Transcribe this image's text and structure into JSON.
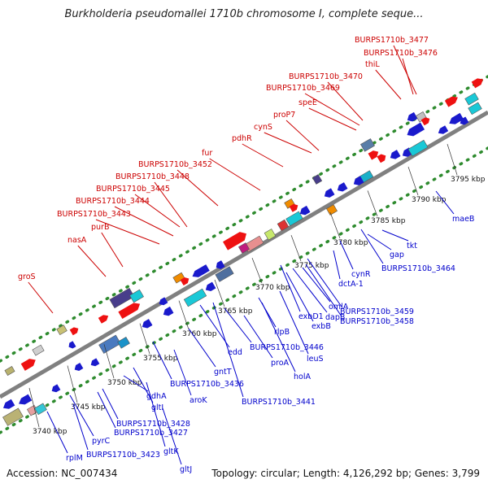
{
  "title": "Burkholderia pseudomallei 1710b chromosome I, complete seque...",
  "footer": {
    "accession": "Accession: NC_007434",
    "topology": "Topology: circular; Length: 4,126,292 bp; Genes: 3,799"
  },
  "colors": {
    "forward_label": "#cc0000",
    "reverse_label": "#0000cc",
    "forward_gene": "#ee1111",
    "reverse_gene": "#1a1acc",
    "backbone": "#7f7f7f",
    "dots": "#2e8b2e",
    "cyan": "#1ac8d6",
    "orange": "#f08c00"
  },
  "kbp_ticks": [
    "3740 kbp",
    "3745 kbp",
    "3750 kbp",
    "3755 kbp",
    "3760 kbp",
    "3765 kbp",
    "3770 kbp",
    "3775 kbp",
    "3780 kbp",
    "3785 kbp",
    "3790 kbp",
    "3795 kbp"
  ],
  "forward_labels": [
    "groS",
    "nasA",
    "purB",
    "BURPS1710b_3443",
    "BURPS1710b_3444",
    "BURPS1710b_3445",
    "BURPS1710b_3448",
    "BURPS1710b_3452",
    "fur",
    "pdhR",
    "cynS",
    "proP7",
    "speE",
    "BURPS1710b_3469",
    "BURPS1710b_3470",
    "thiL",
    "BURPS1710b_3476",
    "BURPS1710b_3477"
  ],
  "reverse_labels": [
    "rplM",
    "BURPS1710b_3423",
    "pyrC",
    "gltK",
    "gltJ",
    "BURPS1710b_3427",
    "BURPS1710b_3428",
    "gltI",
    "gdhA",
    "BURPS1710b_3436",
    "aroK",
    "gntT",
    "edd",
    "BURPS1710b_3441",
    "proA",
    "BURPS1710b_3446",
    "rlpB",
    "holA",
    "leuS",
    "exbD1",
    "exbB",
    "dapB",
    "omlA",
    "BURPS1710b_3459",
    "BURPS1710b_3458",
    "dctA-1",
    "cynR",
    "BURPS1710b_3464",
    "gap",
    "tkt",
    "maeB"
  ]
}
